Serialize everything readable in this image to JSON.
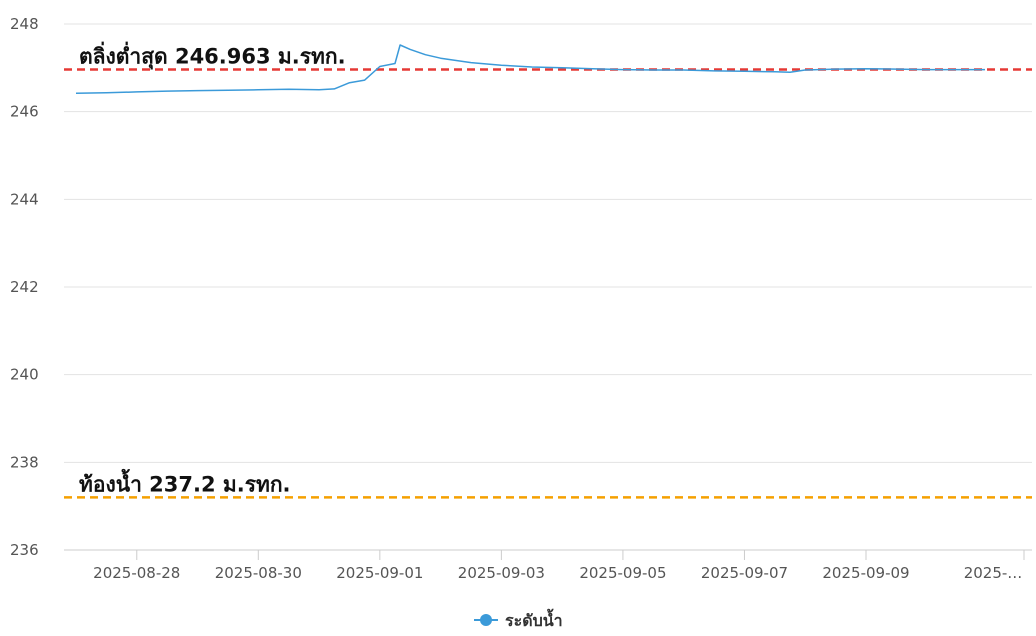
{
  "chart_data": {
    "type": "line",
    "ylim": [
      236,
      248
    ],
    "yticks": [
      236,
      238,
      240,
      242,
      244,
      246,
      248
    ],
    "ytick_labels": [
      "236",
      "238",
      "240",
      "242",
      "244",
      "246",
      "248"
    ],
    "xlim": [
      "2025-08-27T00:00",
      "2025-09-10T23:00"
    ],
    "xticks": [
      "2025-08-28",
      "2025-08-30",
      "2025-09-01",
      "2025-09-03",
      "2025-09-05",
      "2025-09-07",
      "2025-09-09",
      "2025-09-11"
    ],
    "xtick_labels": [
      "2025-08-28",
      "2025-08-30",
      "2025-09-01",
      "2025-09-03",
      "2025-09-05",
      "2025-09-07",
      "2025-09-09",
      "2025-…"
    ],
    "grid": true,
    "legend_position": "bottom-center",
    "series": [
      {
        "name": "ระดับน้ำ",
        "color": "#3b9ad9",
        "points": [
          [
            "2025-08-27T00:00",
            246.42
          ],
          [
            "2025-08-27T12:00",
            246.43
          ],
          [
            "2025-08-28T00:00",
            246.45
          ],
          [
            "2025-08-28T12:00",
            246.47
          ],
          [
            "2025-08-29T00:00",
            246.48
          ],
          [
            "2025-08-29T12:00",
            246.49
          ],
          [
            "2025-08-30T00:00",
            246.5
          ],
          [
            "2025-08-30T12:00",
            246.51
          ],
          [
            "2025-08-31T00:00",
            246.5
          ],
          [
            "2025-08-31T06:00",
            246.52
          ],
          [
            "2025-08-31T12:00",
            246.66
          ],
          [
            "2025-08-31T18:00",
            246.72
          ],
          [
            "2025-09-01T00:00",
            247.03
          ],
          [
            "2025-09-01T06:00",
            247.1
          ],
          [
            "2025-09-01T08:00",
            247.52
          ],
          [
            "2025-09-01T12:00",
            247.42
          ],
          [
            "2025-09-01T18:00",
            247.3
          ],
          [
            "2025-09-02T00:00",
            247.22
          ],
          [
            "2025-09-02T12:00",
            247.12
          ],
          [
            "2025-09-03T00:00",
            247.06
          ],
          [
            "2025-09-03T12:00",
            247.02
          ],
          [
            "2025-09-04T00:00",
            247.0
          ],
          [
            "2025-09-04T12:00",
            246.98
          ],
          [
            "2025-09-05T00:00",
            246.96
          ],
          [
            "2025-09-05T12:00",
            246.95
          ],
          [
            "2025-09-06T00:00",
            246.95
          ],
          [
            "2025-09-06T12:00",
            246.93
          ],
          [
            "2025-09-07T00:00",
            246.92
          ],
          [
            "2025-09-07T12:00",
            246.91
          ],
          [
            "2025-09-07T18:00",
            246.9
          ],
          [
            "2025-09-08T00:00",
            246.95
          ],
          [
            "2025-09-08T12:00",
            246.97
          ],
          [
            "2025-09-09T00:00",
            246.98
          ],
          [
            "2025-09-09T12:00",
            246.97
          ],
          [
            "2025-09-10T00:00",
            246.96
          ],
          [
            "2025-09-10T12:00",
            246.96
          ],
          [
            "2025-09-10T23:00",
            246.96
          ]
        ]
      }
    ],
    "reference_lines": [
      {
        "value": 246.963,
        "label": "ตลิ่งต่ำสุด 246.963 ม.รทก.",
        "color": "#e53935",
        "style": "dashed"
      },
      {
        "value": 237.2,
        "label": "ท้องน้ำ 237.2 ม.รทก.",
        "color": "#f5a000",
        "style": "dashed"
      }
    ],
    "legend": [
      {
        "label": "ระดับน้ำ",
        "color": "#3b9ad9",
        "marker": "circle"
      }
    ]
  }
}
